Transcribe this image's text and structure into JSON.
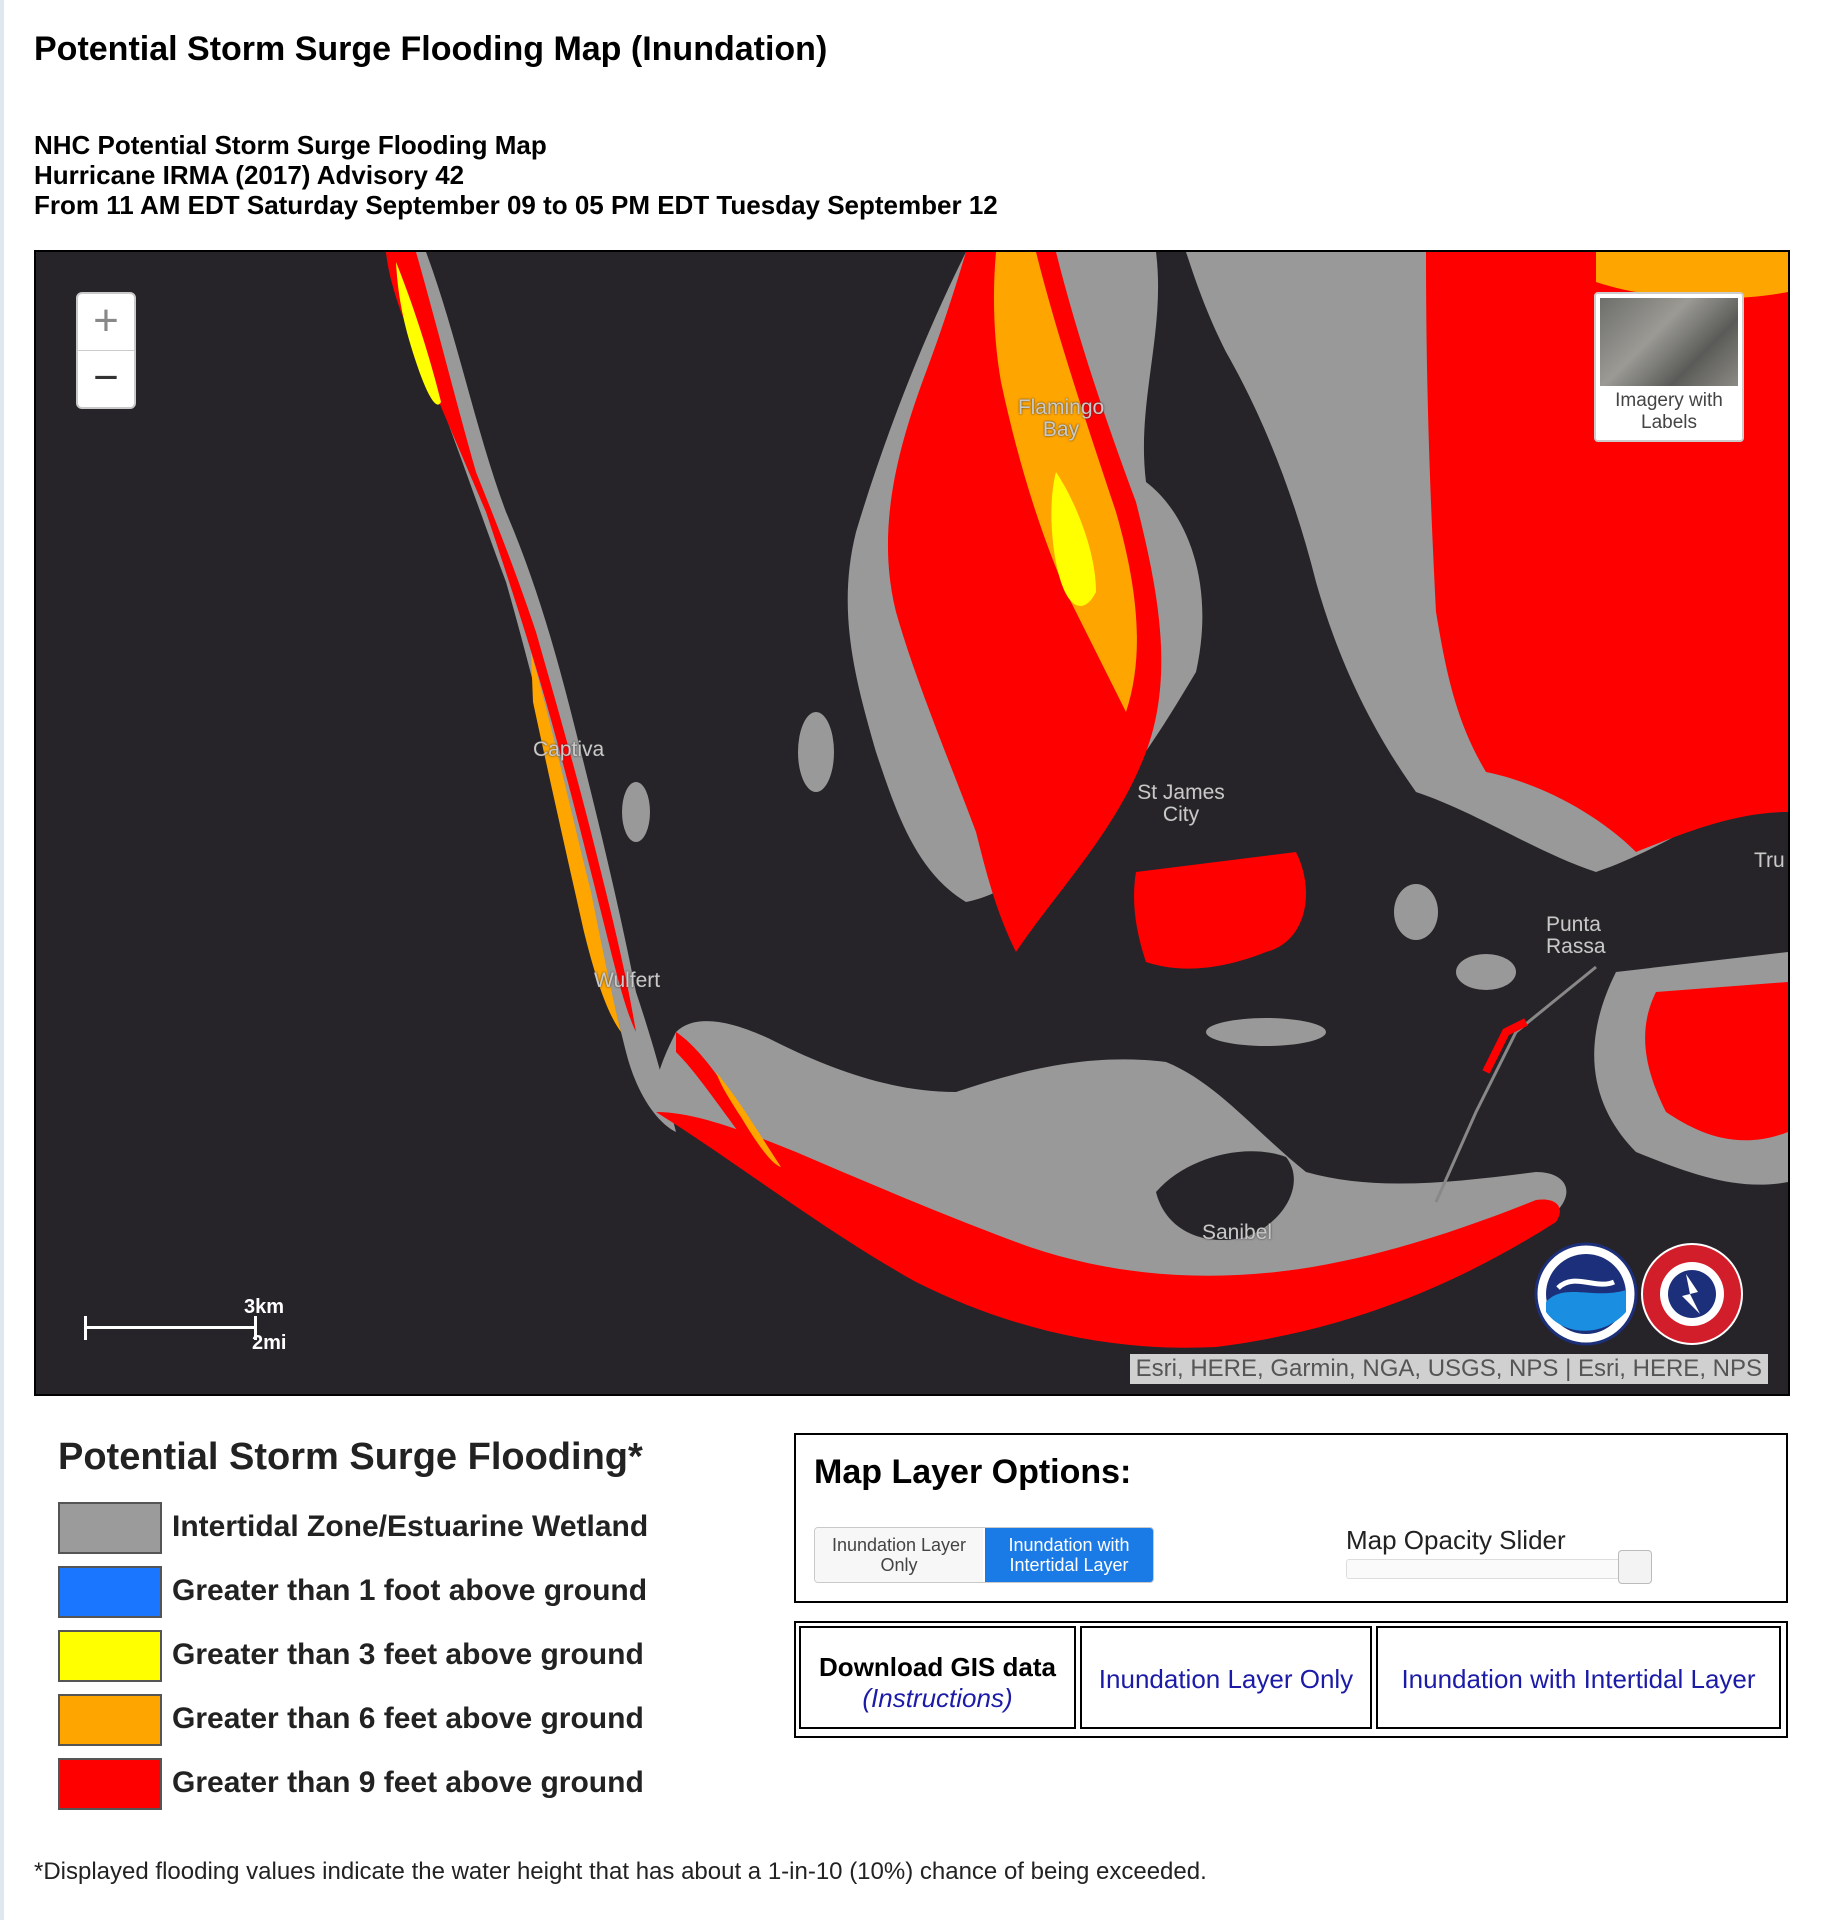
{
  "page": {
    "title": "Potential Storm Surge Flooding Map (Inundation)"
  },
  "header": {
    "line1": "NHC Potential Storm Surge Flooding Map",
    "line2": "Hurricane IRMA (2017) Advisory 42",
    "line3": "From 11 AM EDT Saturday September 09 to 05 PM EDT Tuesday September 12"
  },
  "map": {
    "zoom_in": "+",
    "zoom_out": "−",
    "basemap_toggle": "Imagery with Labels",
    "places": [
      "Flamingo Bay",
      "Captiva",
      "St James City",
      "Punta Rassa",
      "Wulfert",
      "Sanibel",
      "Tru"
    ],
    "scale_km": "3km",
    "scale_mi": "2mi",
    "attribution": "Esri, HERE, Garmin, NGA, USGS, NPS | Esri, HERE, NPS",
    "logos": [
      "noaa-logo",
      "national-weather-service-logo"
    ],
    "colors": {
      "water": "#262428",
      "intertidal": "#999999",
      "gt1ft": "#1a75ff",
      "gt3ft": "#ffff00",
      "gt6ft": "#ffa500",
      "gt9ft": "#ff0000"
    }
  },
  "legend": {
    "title": "Potential Storm Surge Flooding*",
    "items": [
      {
        "label": "Intertidal Zone/Estuarine Wetland",
        "color": "#9b9b9b"
      },
      {
        "label": "Greater than 1 foot above ground",
        "color": "#1a75ff"
      },
      {
        "label": "Greater than 3 feet above ground",
        "color": "#ffff00"
      },
      {
        "label": "Greater than 6 feet above ground",
        "color": "#ffa500"
      },
      {
        "label": "Greater than 9 feet above ground",
        "color": "#ff0000"
      }
    ]
  },
  "options": {
    "title": "Map Layer Options:",
    "toggle_a": "Inundation Layer Only",
    "toggle_b": "Inundation with Intertidal Layer",
    "selected": "Inundation with Intertidal Layer",
    "slider_label": "Map Opacity Slider",
    "opacity": 1.0
  },
  "gis": {
    "download": "Download GIS data",
    "instructions": "(Instructions)",
    "link_a": "Inundation Layer Only",
    "link_b": "Inundation with Intertidal Layer"
  },
  "footnote": "*Displayed flooding values indicate the water height that has about a 1-in-10 (10%) chance of being exceeded."
}
